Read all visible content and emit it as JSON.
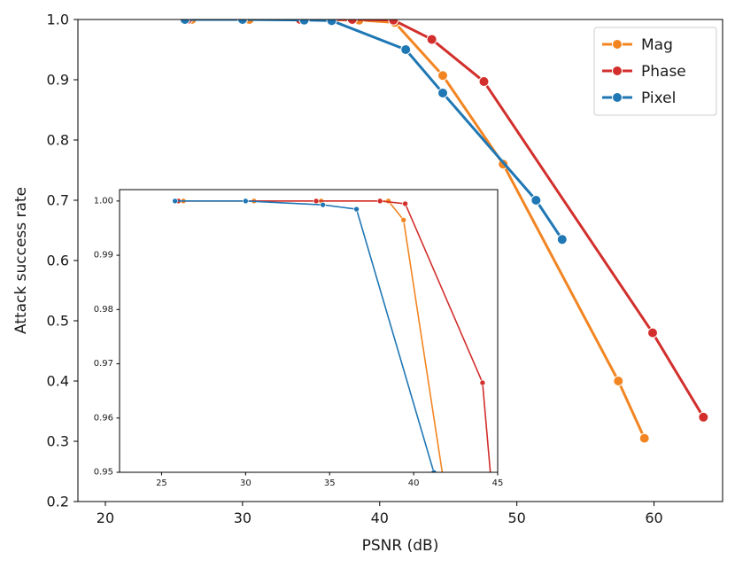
{
  "chart_data": {
    "type": "line",
    "title": "",
    "xlabel": "PSNR (dB)",
    "ylabel": "Attack success rate",
    "xlim": [
      18,
      65
    ],
    "ylim": [
      0.2,
      1.0
    ],
    "xticks": [
      20,
      30,
      40,
      50,
      60
    ],
    "yticks": [
      0.2,
      0.3,
      0.4,
      0.5,
      0.6,
      0.7,
      0.8,
      0.9,
      1.0
    ],
    "xtick_labels": [
      "20",
      "30",
      "40",
      "50",
      "60"
    ],
    "ytick_labels": [
      "0.2",
      "0.3",
      "0.4",
      "0.5",
      "0.6",
      "0.7",
      "0.8",
      "0.9",
      "1.0"
    ],
    "legend_position": "top-right",
    "series": [
      {
        "name": "Mag",
        "color": "#f28522",
        "x": [
          26.3,
          30.5,
          34.5,
          38.5,
          41.1,
          44.6,
          49.0,
          57.4,
          59.3
        ],
        "y": [
          1.0,
          1.0,
          1.0,
          0.999,
          0.995,
          0.907,
          0.76,
          0.4,
          0.305
        ]
      },
      {
        "name": "Phase",
        "color": "#d22f2c",
        "x": [
          26.0,
          30.0,
          34.2,
          38.0,
          41.0,
          43.8,
          47.6,
          59.9,
          63.6
        ],
        "y": [
          1.0,
          1.0,
          1.0,
          1.0,
          0.999,
          0.967,
          0.897,
          0.48,
          0.34
        ]
      },
      {
        "name": "Pixel",
        "color": "#1f77b4",
        "x": [
          25.8,
          30.0,
          34.5,
          36.5,
          41.9,
          44.6,
          51.4,
          53.3
        ],
        "y": [
          1.0,
          1.0,
          0.999,
          0.998,
          0.95,
          0.878,
          0.7,
          0.635
        ]
      }
    ],
    "inset": {
      "xlim": [
        22.5,
        45
      ],
      "ylim": [
        0.95,
        1.0021
      ],
      "xticks": [
        25,
        30,
        35,
        40,
        45
      ],
      "yticks": [
        0.95,
        0.96,
        0.97,
        0.98,
        0.99,
        1.0
      ],
      "xtick_labels": [
        "25",
        "30",
        "35",
        "40",
        "45"
      ],
      "ytick_labels": [
        "0.95",
        "0.96",
        "0.97",
        "0.98",
        "0.99",
        "1.00"
      ],
      "series": [
        {
          "name": "Mag",
          "x": [
            26.3,
            30.5,
            34.5,
            38.5,
            39.4,
            41.9
          ],
          "y": [
            1.0,
            1.0,
            1.0,
            1.0,
            0.9965,
            0.946
          ]
        },
        {
          "name": "Phase",
          "x": [
            26.0,
            30.0,
            34.2,
            38.0,
            39.5,
            44.1,
            44.6
          ],
          "y": [
            1.0,
            1.0,
            1.0,
            1.0,
            0.9995,
            0.9665,
            0.9487
          ]
        },
        {
          "name": "Pixel",
          "x": [
            25.8,
            30.0,
            34.6,
            36.6,
            41.2
          ],
          "y": [
            1.0,
            1.0,
            0.9993,
            0.9985,
            0.95
          ]
        }
      ]
    }
  }
}
